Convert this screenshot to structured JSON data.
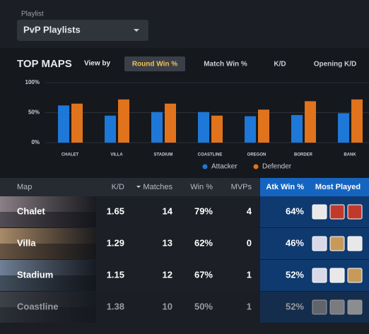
{
  "playlist": {
    "label": "Playlist",
    "value": "PvP Playlists"
  },
  "top_maps": {
    "title": "TOP MAPS",
    "view_by": "View by",
    "tabs": [
      "Round Win %",
      "Match Win %",
      "K/D",
      "Opening K/D"
    ]
  },
  "chart_data": {
    "type": "bar",
    "categories": [
      "CHALET",
      "VILLA",
      "STADIUM",
      "COASTLINE",
      "OREGON",
      "BORDER",
      "BANK"
    ],
    "series": [
      {
        "name": "Attacker",
        "color": "#1e78d8",
        "values": [
          62,
          45,
          51,
          51,
          44,
          46,
          49
        ]
      },
      {
        "name": "Defender",
        "color": "#e0731c",
        "values": [
          65,
          72,
          65,
          45,
          55,
          69,
          72
        ]
      }
    ],
    "ylim": [
      0,
      100
    ],
    "yticks": [
      {
        "value": 0,
        "label": "0%"
      },
      {
        "value": 50,
        "label": "50%"
      },
      {
        "value": 100,
        "label": "100%"
      }
    ],
    "grid": true
  },
  "table": {
    "columns": [
      "Map",
      "K/D",
      "Matches",
      "Win %",
      "MVPs",
      "Atk Win %",
      "Most Played"
    ],
    "rows": [
      [
        "Chalet",
        "1.65",
        "14",
        "79%",
        "4",
        "64%"
      ],
      [
        "Villa",
        "1.29",
        "13",
        "62%",
        "0",
        "46%"
      ],
      [
        "Stadium",
        "1.15",
        "12",
        "67%",
        "1",
        "52%"
      ],
      [
        "Coastline",
        "1.38",
        "10",
        "50%",
        "1",
        "52%"
      ]
    ]
  }
}
